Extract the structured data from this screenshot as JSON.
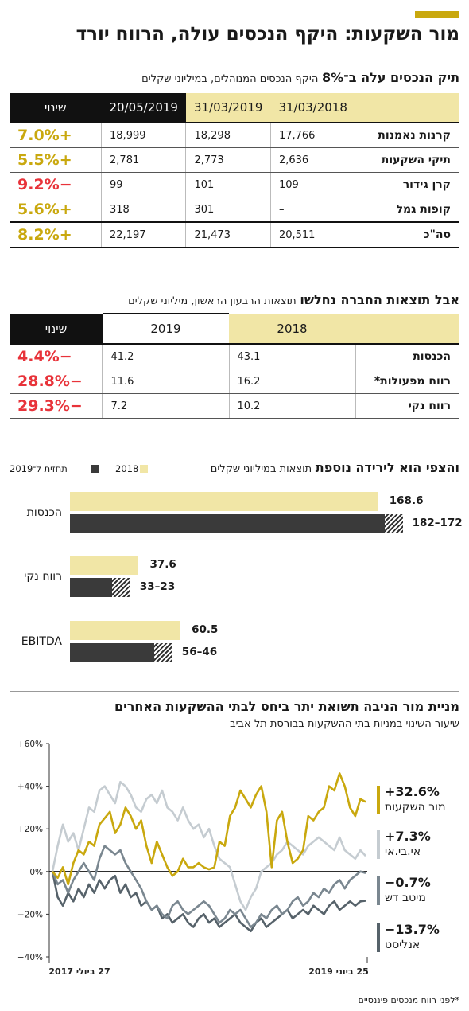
{
  "header": {
    "title": "מור השקעות: היקף הנכסים עולה, הרווח יורד"
  },
  "assets": {
    "title_bold": "תיק הנכסים עלה ב־8%",
    "title_rest": "היקף הנכסים המנוהלים, במיליוני שקלים",
    "columns": [
      "31/03/2018",
      "31/03/2019",
      "20/05/2019",
      "שינוי"
    ],
    "rows": [
      {
        "label": "קרנות נאמנות",
        "v1": "17,766",
        "v2": "18,298",
        "v3": "18,999",
        "change": "+7.0%",
        "dir": "pos"
      },
      {
        "label": "תיקי השקעות",
        "v1": "2,636",
        "v2": "2,773",
        "v3": "2,781",
        "change": "+5.5%",
        "dir": "pos"
      },
      {
        "label": "קרן גידור",
        "v1": "109",
        "v2": "101",
        "v3": "99",
        "change": "−9.2%",
        "dir": "neg"
      },
      {
        "label": "קופות גמל",
        "v1": "–",
        "v2": "301",
        "v3": "318",
        "change": "+5.6%",
        "dir": "pos"
      }
    ],
    "total": {
      "label": "סה\"כ",
      "v1": "20,511",
      "v2": "21,473",
      "v3": "22,197",
      "change": "+8.2%",
      "dir": "pos"
    }
  },
  "results": {
    "title_bold": "אבל תוצאות החברה נחלשו",
    "title_rest": "תוצאות הרבעון הראשון, מיליוני שקלים",
    "columns": [
      "2018",
      "2019",
      "שינוי"
    ],
    "rows": [
      {
        "label": "הכנסות",
        "v1": "43.1",
        "v2": "41.2",
        "change": "−4.4%",
        "dir": "neg"
      },
      {
        "label": "רווח מפעולות*",
        "v1": "16.2",
        "v2": "11.6",
        "change": "−28.8%",
        "dir": "neg"
      },
      {
        "label": "רווח נקי",
        "v1": "10.2",
        "v2": "7.2",
        "change": "−29.3%",
        "dir": "neg"
      }
    ]
  },
  "forecast": {
    "title_bold": "והצפי הוא לירידה נוספת",
    "title_rest": "תוצאות במיליוני שקלים",
    "legend": [
      {
        "name": "2018",
        "color": "#f1e6a6"
      },
      {
        "name": "תחזית ל־2019",
        "color": "#3a3a3a"
      }
    ]
  },
  "chart_data": [
    {
      "type": "bar",
      "orientation": "horizontal",
      "title": "והצפי הוא לירידה נוספת",
      "subtitle": "תוצאות במיליוני שקלים",
      "categories": [
        "הכנסות",
        "רווח נקי",
        "EBITDA"
      ],
      "series": [
        {
          "name": "2018",
          "values": [
            168.6,
            37.6,
            60.5
          ],
          "labels": [
            "168.6",
            "37.6",
            "60.5"
          ]
        },
        {
          "name": "תחזית ל־2019",
          "ranges": [
            [
              172,
              182
            ],
            [
              23,
              33
            ],
            [
              46,
              56
            ]
          ],
          "labels": [
            "182–172",
            "33–23",
            "56–46"
          ]
        }
      ],
      "colors": {
        "2018": "#f1e6a6",
        "forecast": "#3a3a3a"
      }
    },
    {
      "type": "line",
      "title": "מניית מור הניבה תשואת יתר ביחס לבתי ההשקעות האחרים",
      "subtitle": "שיעור השינוי במניות בתי ההשקעות בבורסת תל אביב",
      "x_labels": [
        "27 ביולי 2017",
        "25 ביוני 2019"
      ],
      "y_ticks": [
        "+60%",
        "+40%",
        "+20%",
        "0%",
        "−20%",
        "−40%"
      ],
      "ylim": [
        -40,
        60
      ],
      "series": [
        {
          "name": "מור השקעות",
          "final_value": 32.6,
          "final_label": "+32.6%",
          "color": "#c9a80e",
          "values": [
            0,
            -3,
            2,
            -6,
            4,
            10,
            8,
            14,
            12,
            22,
            25,
            28,
            18,
            22,
            30,
            26,
            20,
            24,
            12,
            4,
            14,
            8,
            2,
            -2,
            0,
            6,
            2,
            2,
            4,
            2,
            1,
            2,
            14,
            12,
            26,
            30,
            38,
            34,
            30,
            36,
            40,
            28,
            2,
            24,
            28,
            14,
            4,
            6,
            10,
            26,
            24,
            28,
            30,
            40,
            38,
            46,
            40,
            30,
            26,
            34,
            32.6
          ]
        },
        {
          "name": "אי.בי.אי",
          "final_value": 7.3,
          "final_label": "+7.3%",
          "color": "#c5ccd1",
          "values": [
            0,
            12,
            22,
            14,
            18,
            10,
            20,
            30,
            28,
            38,
            40,
            36,
            32,
            42,
            40,
            36,
            30,
            28,
            34,
            36,
            32,
            38,
            30,
            28,
            24,
            30,
            24,
            20,
            22,
            16,
            20,
            12,
            6,
            4,
            2,
            -6,
            -14,
            -18,
            -12,
            -8,
            0,
            2,
            4,
            8,
            10,
            14,
            12,
            10,
            8,
            12,
            14,
            16,
            14,
            12,
            10,
            16,
            10,
            8,
            6,
            10,
            7.3
          ]
        },
        {
          "name": "מיטב דש",
          "final_value": -0.7,
          "final_label": "−0.7%",
          "color": "#7a8790",
          "values": [
            0,
            -6,
            -4,
            -10,
            -4,
            0,
            4,
            0,
            -4,
            6,
            12,
            10,
            8,
            10,
            4,
            0,
            -4,
            -8,
            -14,
            -18,
            -16,
            -20,
            -22,
            -16,
            -14,
            -18,
            -20,
            -18,
            -16,
            -14,
            -16,
            -20,
            -24,
            -22,
            -18,
            -20,
            -18,
            -22,
            -26,
            -24,
            -20,
            -22,
            -18,
            -16,
            -20,
            -18,
            -14,
            -12,
            -16,
            -14,
            -10,
            -12,
            -8,
            -10,
            -6,
            -4,
            -8,
            -4,
            -2,
            0,
            -0.7
          ]
        },
        {
          "name": "אנליסט",
          "final_value": -13.7,
          "final_label": "−13.7%",
          "color": "#56626a",
          "values": [
            0,
            -12,
            -16,
            -10,
            -14,
            -8,
            -12,
            -6,
            -10,
            -4,
            -8,
            -4,
            -2,
            -10,
            -6,
            -12,
            -10,
            -16,
            -14,
            -18,
            -16,
            -22,
            -20,
            -24,
            -22,
            -20,
            -24,
            -26,
            -22,
            -20,
            -24,
            -22,
            -26,
            -24,
            -22,
            -20,
            -24,
            -26,
            -28,
            -24,
            -22,
            -26,
            -24,
            -22,
            -20,
            -18,
            -22,
            -20,
            -18,
            -20,
            -16,
            -18,
            -20,
            -16,
            -14,
            -18,
            -16,
            -14,
            -16,
            -14,
            -13.7
          ]
        }
      ]
    }
  ],
  "footnote": "*לפני רווח מנכסים פיננסיים"
}
